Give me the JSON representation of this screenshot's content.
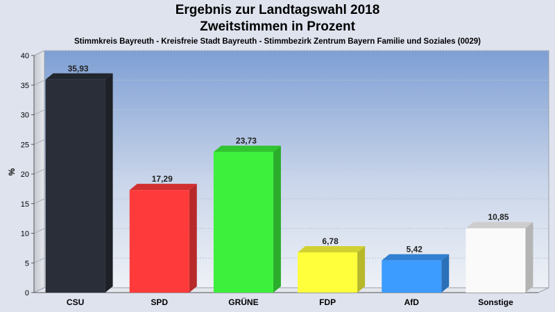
{
  "chart_data": {
    "type": "bar",
    "title": "Ergebnis zur Landtagswahl 2018",
    "title2": "Zweitstimmen in Prozent",
    "subtitle": "Stimmkreis Bayreuth - Kreisfreie Stadt Bayreuth - Stimmbezirk Zentrum Bayern Familie und Soziales (0029)",
    "ylabel": "%",
    "ylim": [
      0,
      40
    ],
    "yticks": [
      "0",
      "5",
      "10",
      "15",
      "20",
      "25",
      "30",
      "35",
      "40"
    ],
    "categories": [
      "CSU",
      "SPD",
      "GRÜNE",
      "FDP",
      "AfD",
      "Sonstige"
    ],
    "values": [
      35.93,
      17.29,
      23.73,
      6.78,
      5.42,
      10.85
    ],
    "value_labels": [
      "35,93",
      "17,29",
      "23,73",
      "6,78",
      "5,42",
      "10,85"
    ],
    "colors": [
      "#2a2e38",
      "#ff3a3a",
      "#3cf03c",
      "#ffff3c",
      "#3c9cff",
      "#fafafa"
    ],
    "grid": true
  }
}
